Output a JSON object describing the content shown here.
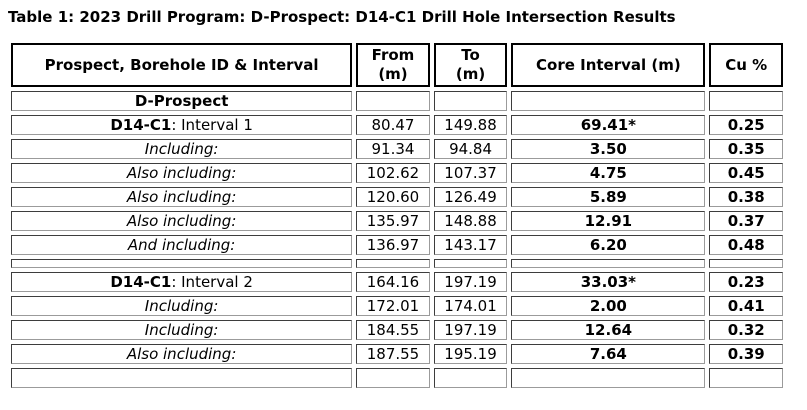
{
  "title": "Table 1: 2023 Drill Program: D-Prospect: D14-C1 Drill Hole Intersection Results",
  "table": {
    "headers": {
      "prospect": "Prospect, Borehole ID & Interval",
      "from": "From\n(m)",
      "to": "To\n(m)",
      "core": "Core Interval (m)",
      "cu": "Cu %"
    },
    "rows": [
      {
        "type": "section",
        "label": "D-Prospect",
        "from": "",
        "to": "",
        "core": "",
        "cu": ""
      },
      {
        "type": "interval",
        "label_bold": "D14-C1",
        "label_rest": ": Interval 1",
        "from": "80.47",
        "to": "149.88",
        "core": "69.41*",
        "cu": "0.25"
      },
      {
        "type": "including",
        "label": "Including:",
        "from": "91.34",
        "to": "94.84",
        "core": "3.50",
        "cu": "0.35"
      },
      {
        "type": "including",
        "label": "Also including:",
        "from": "102.62",
        "to": "107.37",
        "core": "4.75",
        "cu": "0.45"
      },
      {
        "type": "including",
        "label": "Also including:",
        "from": "120.60",
        "to": "126.49",
        "core": "5.89",
        "cu": "0.38"
      },
      {
        "type": "including",
        "label": "Also including:",
        "from": "135.97",
        "to": "148.88",
        "core": "12.91",
        "cu": "0.37"
      },
      {
        "type": "including",
        "label": "And including:",
        "from": "136.97",
        "to": "143.17",
        "core": "6.20",
        "cu": "0.48"
      },
      {
        "type": "spacer"
      },
      {
        "type": "interval",
        "label_bold": "D14-C1",
        "label_rest": ": Interval 2",
        "from": "164.16",
        "to": "197.19",
        "core": "33.03*",
        "cu": "0.23"
      },
      {
        "type": "including",
        "label": "Including:",
        "from": "172.01",
        "to": "174.01",
        "core": "2.00",
        "cu": "0.41"
      },
      {
        "type": "including",
        "label": "Including:",
        "from": "184.55",
        "to": "197.19",
        "core": "12.64",
        "cu": "0.32"
      },
      {
        "type": "including",
        "label": "Also including:",
        "from": "187.55",
        "to": "195.19",
        "core": "7.64",
        "cu": "0.39"
      },
      {
        "type": "empty"
      }
    ]
  },
  "chart_data": {
    "type": "table",
    "title": "Table 1: 2023 Drill Program: D-Prospect: D14-C1 Drill Hole Intersection Results",
    "columns": [
      "Prospect, Borehole ID & Interval",
      "From (m)",
      "To (m)",
      "Core Interval (m)",
      "Cu %"
    ],
    "rows": [
      [
        "D-Prospect",
        "",
        "",
        "",
        ""
      ],
      [
        "D14-C1: Interval 1",
        "80.47",
        "149.88",
        "69.41*",
        "0.25"
      ],
      [
        "Including:",
        "91.34",
        "94.84",
        "3.50",
        "0.35"
      ],
      [
        "Also including:",
        "102.62",
        "107.37",
        "4.75",
        "0.45"
      ],
      [
        "Also including:",
        "120.60",
        "126.49",
        "5.89",
        "0.38"
      ],
      [
        "Also including:",
        "135.97",
        "148.88",
        "12.91",
        "0.37"
      ],
      [
        "And including:",
        "136.97",
        "143.17",
        "6.20",
        "0.48"
      ],
      [
        "D14-C1: Interval 2",
        "164.16",
        "197.19",
        "33.03*",
        "0.23"
      ],
      [
        "Including:",
        "172.01",
        "174.01",
        "2.00",
        "0.41"
      ],
      [
        "Including:",
        "184.55",
        "197.19",
        "12.64",
        "0.32"
      ],
      [
        "Also including:",
        "187.55",
        "195.19",
        "7.64",
        "0.39"
      ]
    ]
  }
}
